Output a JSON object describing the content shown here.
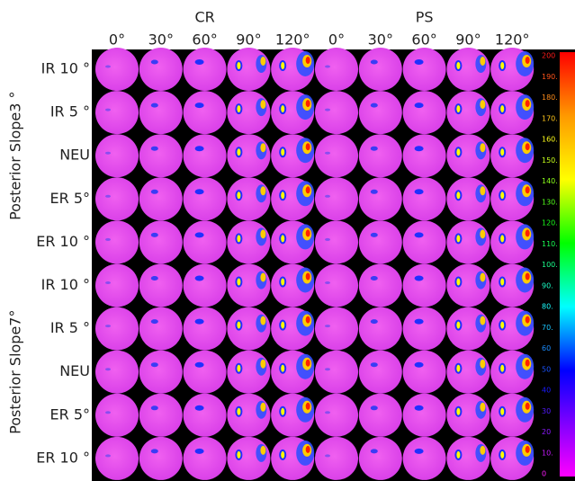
{
  "column_groups": [
    {
      "label": "CR",
      "angles": [
        "0°",
        "30°",
        "60°",
        "90°",
        "120°"
      ]
    },
    {
      "label": "PS",
      "angles": [
        "0°",
        "30°",
        "60°",
        "90°",
        "120°"
      ]
    }
  ],
  "row_groups": [
    {
      "label": "Posterior Slope3 °",
      "rows": [
        "IR 10 °",
        "IR 5 °",
        "NEU",
        "ER 5°",
        "ER 10 °"
      ]
    },
    {
      "label": "Posterior Slope7°",
      "rows": [
        "IR 10 °",
        "IR 5 °",
        "NEU",
        "ER 5°",
        "ER 10 °"
      ]
    }
  ],
  "colorbar_labels": [
    "200",
    "190.",
    "180.",
    "170.",
    "160.",
    "150.",
    "140.",
    "130.",
    "120.",
    "110.",
    "100.",
    "90.",
    "80.",
    "70.",
    "60",
    "50",
    "40",
    "30",
    "20",
    "10.",
    "0"
  ]
}
